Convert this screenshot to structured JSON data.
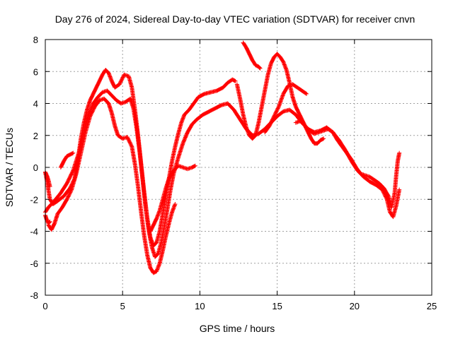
{
  "chart_data": {
    "type": "scatter",
    "title": "Day 276 of 2024, Sidereal Day-to-day VTEC variation (SDTVAR) for receiver cnvn",
    "xlabel": "GPS time / hours",
    "ylabel": "SDTVAR / TECUs",
    "xlim": [
      0,
      25
    ],
    "ylim": [
      -8,
      8
    ],
    "xticks": [
      0,
      5,
      10,
      15,
      20,
      25
    ],
    "yticks": [
      -8,
      -6,
      -4,
      -2,
      0,
      2,
      4,
      6,
      8
    ],
    "grid": true,
    "marker": "plus",
    "series": [
      {
        "color": "#ff0000",
        "segments": [
          [
            [
              0.0,
              -0.3
            ],
            [
              0.1,
              -0.8
            ],
            [
              0.2,
              -1.4
            ],
            [
              0.3,
              -2.0
            ],
            [
              0.5,
              -2.3
            ],
            [
              0.8,
              -2.1
            ],
            [
              1.2,
              -1.8
            ],
            [
              1.6,
              -1.3
            ],
            [
              1.9,
              -0.7
            ],
            [
              2.1,
              0.4
            ],
            [
              2.3,
              1.8
            ],
            [
              2.5,
              2.8
            ],
            [
              2.7,
              3.6
            ],
            [
              2.9,
              4.2
            ],
            [
              3.1,
              4.6
            ],
            [
              3.3,
              5.0
            ],
            [
              3.5,
              5.4
            ],
            [
              3.7,
              5.8
            ],
            [
              3.9,
              6.1
            ],
            [
              4.1,
              5.9
            ],
            [
              4.3,
              5.4
            ],
            [
              4.5,
              5.0
            ],
            [
              4.8,
              5.2
            ],
            [
              5.1,
              5.8
            ],
            [
              5.4,
              5.7
            ],
            [
              5.6,
              5.0
            ],
            [
              5.8,
              3.6
            ],
            [
              6.0,
              2.0
            ],
            [
              6.2,
              0.2
            ],
            [
              6.4,
              -1.6
            ],
            [
              6.6,
              -3.2
            ],
            [
              6.8,
              -4.4
            ],
            [
              7.0,
              -4.9
            ],
            [
              7.2,
              -4.7
            ],
            [
              7.4,
              -4.0
            ],
            [
              7.6,
              -2.9
            ],
            [
              7.8,
              -1.8
            ],
            [
              8.0,
              -0.7
            ],
            [
              8.2,
              0.4
            ],
            [
              8.4,
              1.3
            ],
            [
              8.6,
              2.1
            ],
            [
              8.8,
              2.8
            ],
            [
              9.0,
              3.3
            ],
            [
              9.3,
              3.6
            ],
            [
              9.6,
              4.0
            ],
            [
              9.9,
              4.4
            ],
            [
              10.3,
              4.6
            ],
            [
              10.7,
              4.7
            ],
            [
              11.1,
              4.8
            ],
            [
              11.5,
              5.0
            ],
            [
              11.8,
              5.3
            ],
            [
              12.1,
              5.5
            ],
            [
              12.3,
              5.4
            ]
          ],
          [
            [
              0.0,
              -2.8
            ],
            [
              0.2,
              -2.5
            ],
            [
              0.5,
              -2.2
            ],
            [
              1.0,
              -1.6
            ],
            [
              1.4,
              -1.0
            ],
            [
              1.8,
              -0.2
            ],
            [
              2.2,
              1.0
            ],
            [
              2.5,
              2.2
            ],
            [
              2.8,
              3.3
            ],
            [
              3.1,
              4.0
            ],
            [
              3.4,
              4.4
            ],
            [
              3.7,
              4.7
            ],
            [
              4.0,
              4.8
            ],
            [
              4.3,
              4.5
            ],
            [
              4.6,
              4.2
            ],
            [
              4.9,
              4.0
            ],
            [
              5.2,
              4.1
            ],
            [
              5.5,
              4.3
            ],
            [
              5.7,
              3.7
            ],
            [
              5.9,
              2.5
            ],
            [
              6.1,
              1.0
            ],
            [
              6.3,
              -0.8
            ],
            [
              6.5,
              -2.6
            ],
            [
              6.7,
              -4.0
            ],
            [
              6.9,
              -5.0
            ],
            [
              7.1,
              -5.6
            ],
            [
              7.3,
              -5.4
            ],
            [
              7.5,
              -4.7
            ],
            [
              7.7,
              -3.7
            ],
            [
              7.9,
              -2.6
            ],
            [
              8.1,
              -1.4
            ],
            [
              8.3,
              -0.4
            ],
            [
              8.6,
              0.6
            ],
            [
              8.9,
              1.5
            ],
            [
              9.2,
              2.2
            ],
            [
              9.5,
              2.7
            ],
            [
              9.8,
              3.0
            ],
            [
              10.2,
              3.3
            ],
            [
              10.6,
              3.5
            ],
            [
              11.0,
              3.7
            ],
            [
              11.4,
              3.9
            ],
            [
              11.8,
              4.0
            ],
            [
              12.2,
              3.6
            ],
            [
              12.6,
              3.0
            ],
            [
              13.0,
              2.4
            ],
            [
              13.4,
              2.0
            ],
            [
              13.8,
              2.1
            ],
            [
              14.2,
              2.4
            ],
            [
              14.6,
              2.8
            ],
            [
              15.0,
              3.2
            ],
            [
              15.4,
              3.5
            ],
            [
              15.8,
              3.6
            ],
            [
              16.2,
              3.3
            ],
            [
              16.6,
              2.8
            ],
            [
              17.0,
              2.4
            ],
            [
              17.4,
              2.2
            ],
            [
              17.8,
              2.3
            ],
            [
              18.2,
              2.5
            ],
            [
              18.6,
              2.2
            ],
            [
              19.0,
              1.7
            ],
            [
              19.4,
              1.1
            ],
            [
              19.8,
              0.4
            ],
            [
              20.2,
              -0.2
            ],
            [
              20.6,
              -0.6
            ],
            [
              21.0,
              -0.9
            ],
            [
              21.4,
              -1.1
            ],
            [
              21.8,
              -1.4
            ],
            [
              22.1,
              -2.0
            ],
            [
              22.3,
              -2.8
            ],
            [
              22.5,
              -3.1
            ],
            [
              22.7,
              -2.4
            ],
            [
              22.9,
              -1.4
            ]
          ],
          [
            [
              0.2,
              -3.6
            ],
            [
              0.4,
              -3.9
            ],
            [
              0.6,
              -3.5
            ],
            [
              0.8,
              -2.9
            ],
            [
              1.1,
              -2.5
            ],
            [
              1.4,
              -2.0
            ],
            [
              1.7,
              -1.4
            ],
            [
              2.0,
              -0.4
            ],
            [
              2.3,
              0.9
            ],
            [
              2.6,
              2.2
            ],
            [
              2.9,
              3.2
            ],
            [
              3.2,
              3.8
            ],
            [
              3.5,
              4.2
            ],
            [
              3.8,
              4.3
            ],
            [
              4.1,
              4.0
            ],
            [
              4.3,
              3.4
            ],
            [
              4.5,
              2.6
            ],
            [
              4.7,
              2.0
            ],
            [
              5.0,
              1.8
            ],
            [
              5.3,
              1.9
            ],
            [
              5.6,
              1.3
            ],
            [
              5.8,
              0.2
            ],
            [
              6.0,
              -1.2
            ],
            [
              6.2,
              -2.8
            ],
            [
              6.4,
              -4.3
            ],
            [
              6.6,
              -5.5
            ],
            [
              6.8,
              -6.3
            ],
            [
              7.0,
              -6.6
            ],
            [
              7.2,
              -6.5
            ],
            [
              7.4,
              -6.0
            ],
            [
              7.6,
              -5.2
            ],
            [
              7.8,
              -4.3
            ],
            [
              8.0,
              -3.5
            ],
            [
              8.2,
              -2.8
            ],
            [
              8.4,
              -2.3
            ]
          ],
          [
            [
              6.8,
              -4.0
            ],
            [
              7.0,
              -3.6
            ],
            [
              7.2,
              -3.2
            ],
            [
              7.4,
              -2.7
            ],
            [
              7.6,
              -2.0
            ],
            [
              7.8,
              -1.3
            ],
            [
              8.0,
              -0.7
            ],
            [
              8.3,
              -0.2
            ],
            [
              8.6,
              0.1
            ],
            [
              8.9,
              0.0
            ],
            [
              9.2,
              -0.1
            ],
            [
              9.5,
              0.0
            ],
            [
              9.7,
              0.1
            ]
          ],
          [
            [
              12.8,
              7.8
            ],
            [
              13.0,
              7.5
            ],
            [
              13.2,
              7.1
            ],
            [
              13.4,
              6.7
            ],
            [
              13.6,
              6.4
            ],
            [
              13.8,
              6.3
            ],
            [
              13.9,
              6.2
            ]
          ],
          [
            [
              12.4,
              5.2
            ],
            [
              12.6,
              4.3
            ],
            [
              12.8,
              3.3
            ],
            [
              13.0,
              2.5
            ],
            [
              13.2,
              2.0
            ],
            [
              13.4,
              1.8
            ],
            [
              13.6,
              2.0
            ],
            [
              13.8,
              2.8
            ],
            [
              14.0,
              3.8
            ],
            [
              14.2,
              4.8
            ],
            [
              14.4,
              5.8
            ],
            [
              14.6,
              6.5
            ],
            [
              14.8,
              6.9
            ],
            [
              15.0,
              7.1
            ],
            [
              15.2,
              6.9
            ],
            [
              15.4,
              6.6
            ],
            [
              15.6,
              6.1
            ],
            [
              15.8,
              5.3
            ],
            [
              16.0,
              4.4
            ],
            [
              16.2,
              3.8
            ],
            [
              16.4,
              3.4
            ],
            [
              16.6,
              3.0
            ],
            [
              16.8,
              2.6
            ],
            [
              17.0,
              2.2
            ],
            [
              17.2,
              1.8
            ],
            [
              17.4,
              1.5
            ],
            [
              17.6,
              1.5
            ],
            [
              17.8,
              1.7
            ],
            [
              18.0,
              1.8
            ]
          ],
          [
            [
              14.2,
              2.2
            ],
            [
              14.5,
              2.6
            ],
            [
              14.8,
              3.2
            ],
            [
              15.1,
              3.8
            ],
            [
              15.4,
              4.6
            ],
            [
              15.7,
              5.1
            ],
            [
              16.0,
              5.2
            ],
            [
              16.3,
              5.0
            ],
            [
              16.6,
              4.8
            ],
            [
              16.9,
              4.6
            ]
          ],
          [
            [
              16.2,
              2.8
            ],
            [
              16.5,
              2.9
            ],
            [
              16.8,
              2.6
            ],
            [
              17.1,
              2.3
            ],
            [
              17.4,
              2.1
            ],
            [
              17.7,
              2.2
            ],
            [
              18.0,
              2.3
            ],
            [
              18.3,
              2.4
            ],
            [
              18.6,
              2.2
            ],
            [
              18.9,
              1.7
            ],
            [
              19.2,
              1.3
            ],
            [
              19.5,
              0.9
            ],
            [
              19.8,
              0.5
            ],
            [
              20.1,
              0.0
            ],
            [
              20.4,
              -0.4
            ],
            [
              20.7,
              -0.5
            ],
            [
              21.0,
              -0.6
            ],
            [
              21.3,
              -0.8
            ],
            [
              21.6,
              -1.0
            ],
            [
              21.9,
              -1.3
            ],
            [
              22.2,
              -1.8
            ],
            [
              22.4,
              -2.5
            ],
            [
              22.6,
              -1.6
            ],
            [
              22.7,
              -0.5
            ],
            [
              22.8,
              0.4
            ],
            [
              22.9,
              0.9
            ]
          ],
          [
            [
              0.0,
              -3.0
            ],
            [
              0.1,
              -3.3
            ],
            [
              0.2,
              -3.5
            ],
            [
              0.3,
              -3.4
            ]
          ],
          [
            [
              1.0,
              0.0
            ],
            [
              1.2,
              0.4
            ],
            [
              1.4,
              0.7
            ],
            [
              1.6,
              0.8
            ],
            [
              1.8,
              0.9
            ]
          ],
          [
            [
              0.3,
              -1.2
            ],
            [
              0.2,
              -0.8
            ],
            [
              0.1,
              -0.5
            ],
            [
              0.0,
              -0.3
            ]
          ]
        ]
      }
    ]
  }
}
